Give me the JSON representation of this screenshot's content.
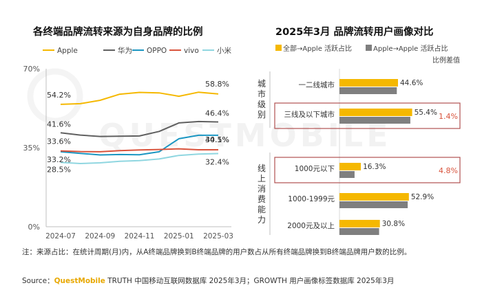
{
  "titles": {
    "left": "各终端品牌流转来源为自身品牌的比例",
    "right": "2025年3月 品牌流转用户画像对比"
  },
  "chart_data": [
    {
      "type": "line",
      "title": "各终端品牌流转来源为自身品牌的比例",
      "categories": [
        "2024-07",
        "2024-08",
        "2024-09",
        "2024-10",
        "2024-11",
        "2024-12",
        "2025-01",
        "2025-02",
        "2025-03"
      ],
      "x_tick_labels": [
        "2024-07",
        "2024-09",
        "2024-11",
        "2025-01",
        "2025-03"
      ],
      "y_tick_labels": [
        "70%",
        "35%",
        "0%"
      ],
      "ylim": [
        0,
        70
      ],
      "legend_position": "top",
      "grid": false,
      "series": [
        {
          "name": "Apple",
          "color": "#f5b800",
          "values": [
            54.2,
            54.5,
            56.0,
            58.7,
            59.5,
            59.3,
            57.8,
            59.6,
            58.8
          ],
          "start_label": "54.2%",
          "end_label": "58.8%"
        },
        {
          "name": "华为",
          "color": "#606060",
          "values": [
            41.6,
            40.6,
            40.0,
            40.1,
            40.2,
            42.2,
            46.0,
            46.6,
            46.4
          ],
          "start_label": "41.6%",
          "end_label": "46.4%"
        },
        {
          "name": "OPPO",
          "color": "#1a96c2",
          "values": [
            33.2,
            32.5,
            31.8,
            32.0,
            31.9,
            33.2,
            39.0,
            40.5,
            40.5
          ],
          "start_label": "33.2%",
          "end_label": "40.5%"
        },
        {
          "name": "vivo",
          "color": "#d9533c",
          "values": [
            33.6,
            33.3,
            33.2,
            33.7,
            34.0,
            34.2,
            34.5,
            34.1,
            34.1
          ],
          "start_label": "33.6%",
          "end_label": "34.1%"
        },
        {
          "name": "小米",
          "color": "#8fd6e0",
          "values": [
            28.5,
            28.0,
            28.3,
            29.0,
            29.3,
            30.0,
            31.6,
            32.2,
            32.4
          ],
          "start_label": "28.5%",
          "end_label": "32.4%"
        }
      ]
    },
    {
      "type": "bar",
      "orientation": "horizontal",
      "title": "2025年3月 品牌流转用户画像对比",
      "legend_position": "top",
      "difference_header": "比例差值",
      "groups": [
        {
          "label": "城市级别",
          "categories": [
            "一二线城市",
            "三线及以下城市"
          ]
        },
        {
          "label": "线上消费能力",
          "categories": [
            "1000元以下",
            "1000-1999元",
            "2000元及以上"
          ]
        }
      ],
      "categories": [
        "一二线城市",
        "三线及以下城市",
        "1000元以下",
        "1000-1999元",
        "2000元及以上"
      ],
      "series": [
        {
          "name": "全部→Apple 活跃占比",
          "color": "#f5b800",
          "values": [
            44.6,
            55.4,
            16.3,
            52.9,
            30.8
          ],
          "labels": [
            "44.6%",
            "55.4%",
            "16.3%",
            "52.9%",
            "30.8%"
          ]
        },
        {
          "name": "Apple→Apple 活跃占比",
          "color": "#7f7f7f",
          "values": [
            43.7,
            54.0,
            11.5,
            52.0,
            30.2
          ],
          "labels": []
        }
      ],
      "differences": [
        {
          "category": "三线及以下城市",
          "label": "1.4%",
          "color": "#d9533c"
        },
        {
          "category": "1000元以下",
          "label": "4.8%",
          "color": "#d9533c"
        }
      ]
    }
  ],
  "footer": {
    "note": "注：来源占比：在统计周期(月)内，从A终端品牌换到B终端品牌的用户数占从所有终端品牌换到B终端品牌用户数的比例。",
    "source_prefix": "Source：",
    "source_brand": "QuestMobile",
    "source_rest": " TRUTH 中国移动互联网数据库 2025年3月；GROWTH 用户画像标签数据库 2025年3月"
  },
  "watermark": "QUESTMOBILE"
}
